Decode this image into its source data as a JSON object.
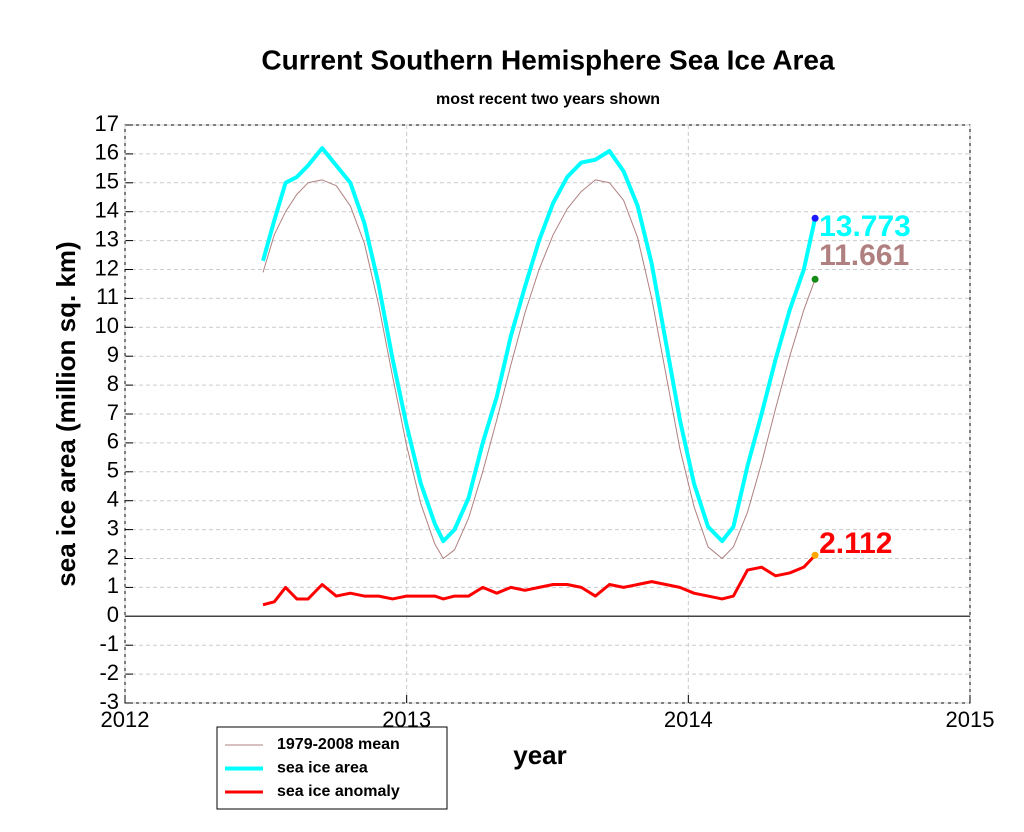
{
  "chart_data": {
    "type": "line",
    "title": "Current Southern Hemisphere Sea Ice Area",
    "subtitle": "most recent two years shown",
    "x_label": "year",
    "y_label": "sea ice area (million sq. km)",
    "x": [
      2012.49,
      2012.53,
      2012.57,
      2012.61,
      2012.65,
      2012.7,
      2012.75,
      2012.8,
      2012.85,
      2012.9,
      2012.95,
      2013.0,
      2013.05,
      2013.1,
      2013.13,
      2013.17,
      2013.22,
      2013.27,
      2013.32,
      2013.37,
      2013.42,
      2013.47,
      2013.52,
      2013.57,
      2013.62,
      2013.67,
      2013.72,
      2013.77,
      2013.82,
      2013.87,
      2013.92,
      2013.97,
      2014.02,
      2014.07,
      2014.12,
      2014.16,
      2014.21,
      2014.26,
      2014.31,
      2014.36,
      2014.41,
      2014.45
    ],
    "series": [
      {
        "name": "1979-2008 mean",
        "color": "#b08080",
        "marker_color": "#138a13",
        "width": 1,
        "values": [
          11.9,
          13.2,
          14.0,
          14.6,
          15.0,
          15.1,
          14.9,
          14.2,
          12.9,
          10.8,
          8.3,
          5.9,
          3.9,
          2.5,
          2.0,
          2.3,
          3.4,
          5.0,
          6.8,
          8.7,
          10.5,
          12.0,
          13.2,
          14.1,
          14.7,
          15.1,
          15.0,
          14.4,
          13.1,
          11.0,
          8.4,
          5.8,
          3.8,
          2.4,
          2.0,
          2.4,
          3.6,
          5.3,
          7.2,
          9.0,
          10.6,
          11.661
        ]
      },
      {
        "name": "sea ice area",
        "color": "#00ffff",
        "marker_color": "#1a1aff",
        "width": 4,
        "values": [
          12.3,
          13.7,
          15.0,
          15.2,
          15.6,
          16.2,
          15.6,
          15.0,
          13.6,
          11.5,
          8.9,
          6.6,
          4.6,
          3.2,
          2.6,
          3.0,
          4.1,
          6.0,
          7.6,
          9.7,
          11.4,
          13.0,
          14.3,
          15.2,
          15.7,
          15.8,
          16.1,
          15.4,
          14.2,
          12.2,
          9.5,
          6.8,
          4.6,
          3.1,
          2.6,
          3.1,
          5.2,
          7.0,
          8.9,
          10.6,
          12.0,
          13.773
        ]
      },
      {
        "name": "sea ice anomaly",
        "color": "#ff0000",
        "marker_color": "#ffa500",
        "width": 3,
        "values": [
          0.4,
          0.5,
          1.0,
          0.6,
          0.6,
          1.1,
          0.7,
          0.8,
          0.7,
          0.7,
          0.6,
          0.7,
          0.7,
          0.7,
          0.6,
          0.7,
          0.7,
          1.0,
          0.8,
          1.0,
          0.9,
          1.0,
          1.1,
          1.1,
          1.0,
          0.7,
          1.1,
          1.0,
          1.1,
          1.2,
          1.1,
          1.0,
          0.8,
          0.7,
          0.6,
          0.7,
          1.6,
          1.7,
          1.4,
          1.5,
          1.7,
          2.112
        ]
      }
    ],
    "xlim": [
      2012,
      2015
    ],
    "xticks": [
      2012,
      2013,
      2014,
      2015
    ],
    "ylim": [
      -3,
      17
    ],
    "yticks": [
      -3,
      -2,
      -1,
      0,
      1,
      2,
      3,
      4,
      5,
      6,
      7,
      8,
      9,
      10,
      11,
      12,
      13,
      14,
      15,
      16,
      17
    ],
    "grid": true,
    "legend": "bottom-left"
  }
}
